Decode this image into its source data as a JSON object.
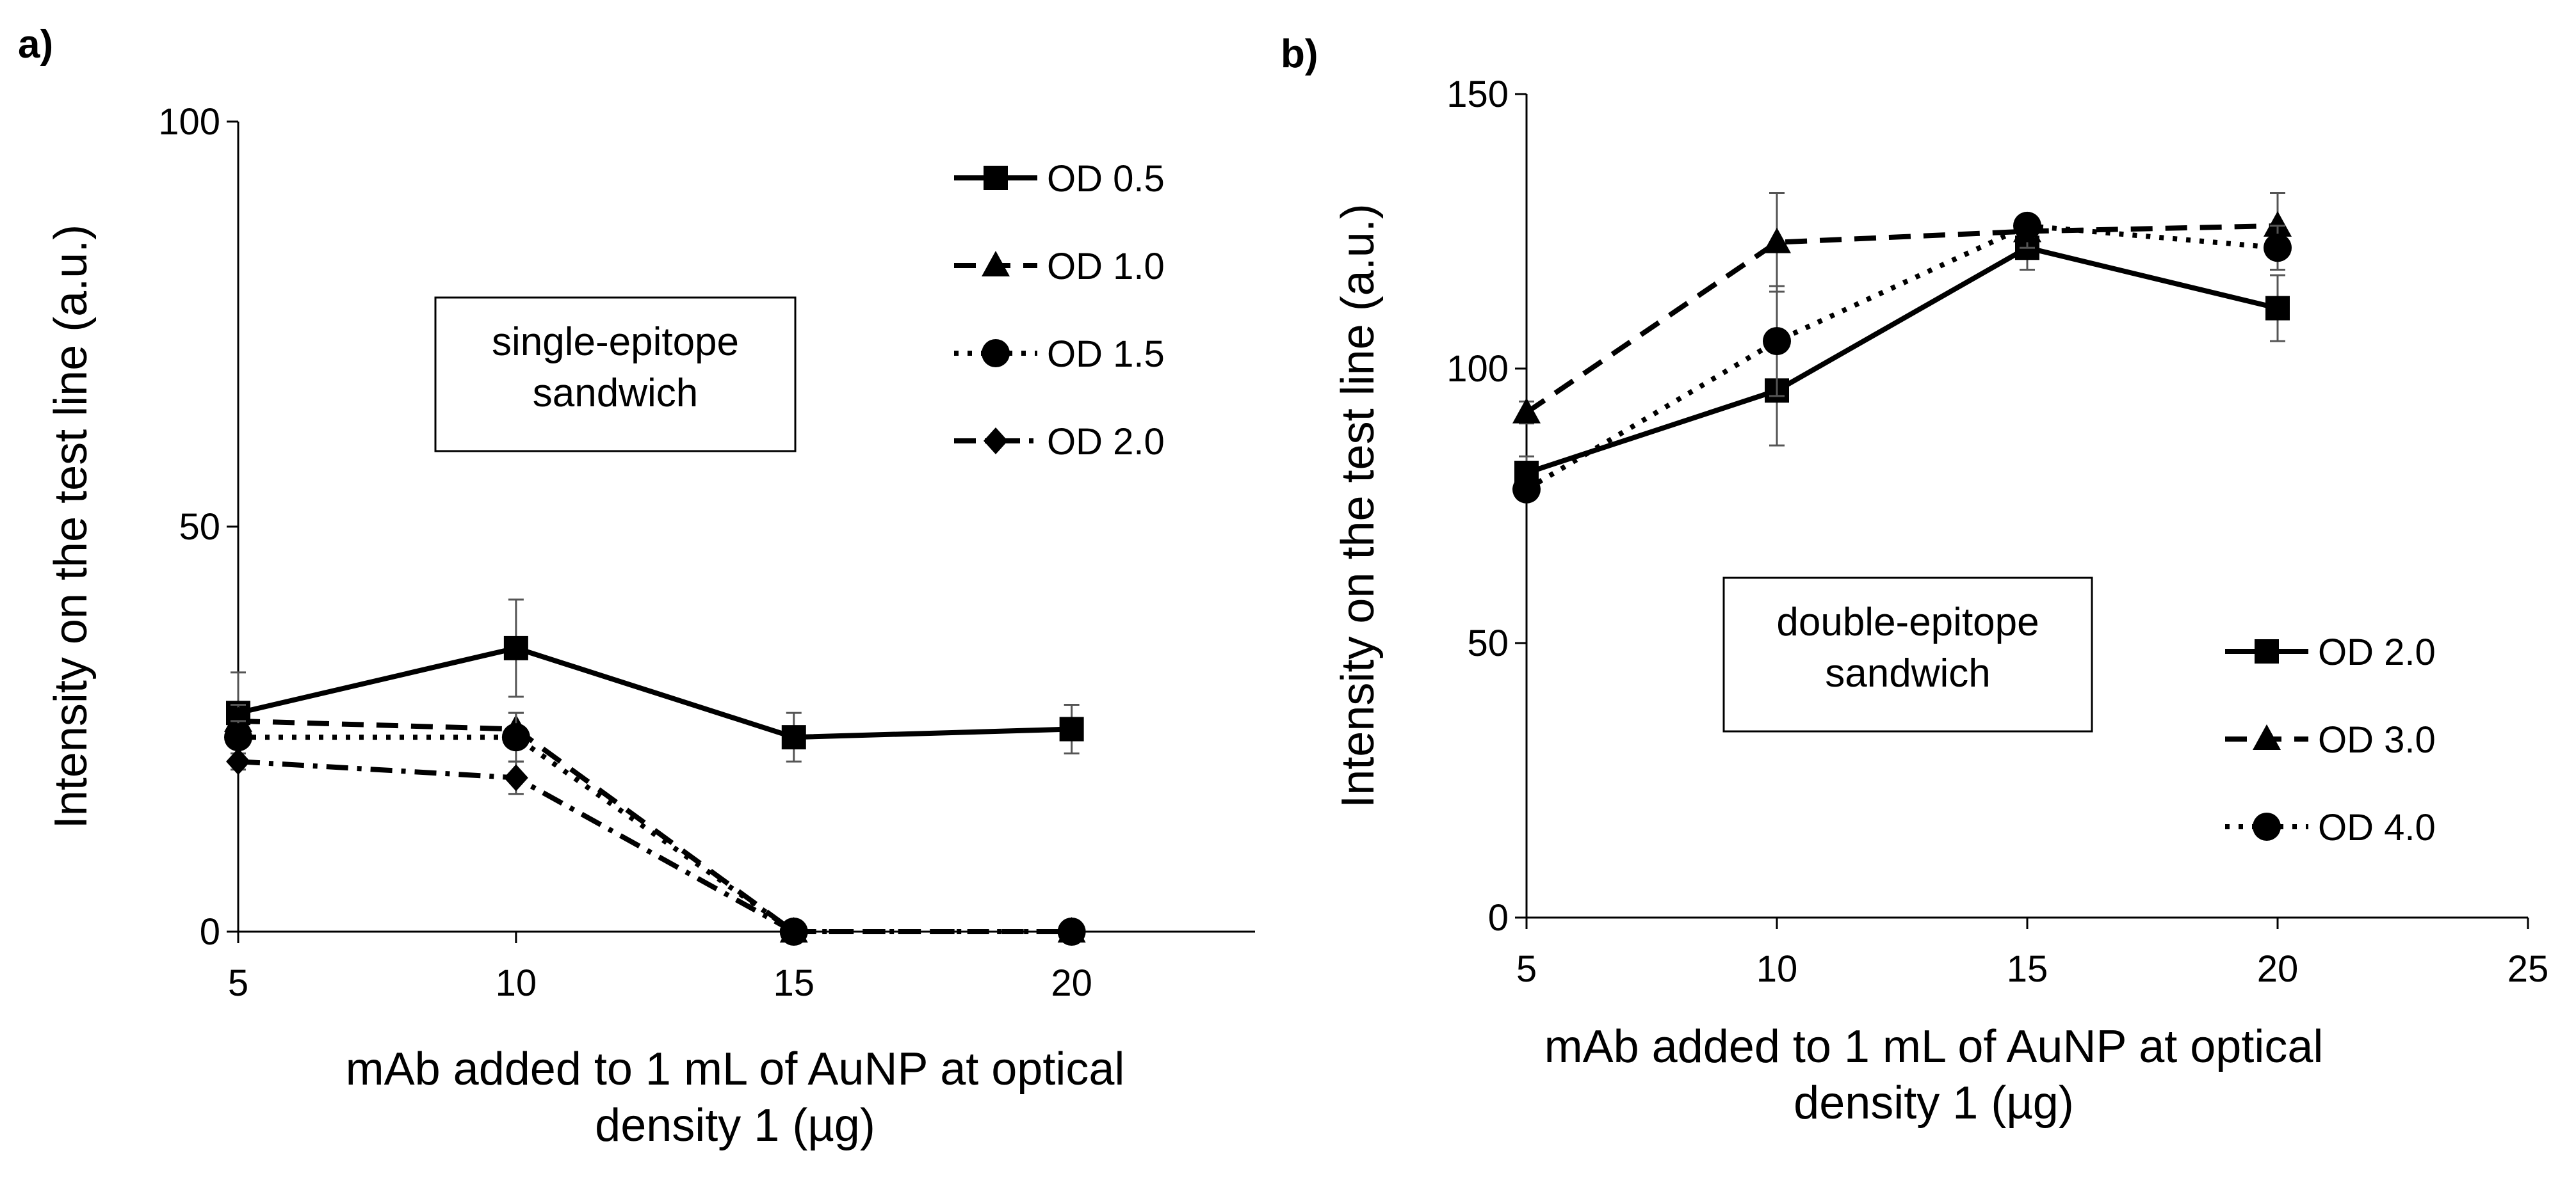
{
  "chart_data": [
    {
      "panel_label": "a)",
      "type": "line",
      "xlabel": [
        "mAb added to 1 mL of AuNP at optical",
        "density 1 (µg)"
      ],
      "ylabel": "Intensity on the test line (a.u.)",
      "xlim": [
        5,
        23.3
      ],
      "ylim": [
        0,
        100
      ],
      "xticks": [
        5,
        10,
        15,
        20
      ],
      "yticks": [
        0,
        50,
        100
      ],
      "grid": false,
      "legend_position": "top-right",
      "annotation": [
        "single-epitope",
        "sandwich"
      ],
      "series": [
        {
          "name": "OD 0.5",
          "marker": "square",
          "dash": "solid",
          "x": [
            5,
            10,
            15,
            20
          ],
          "y": [
            27,
            35,
            24,
            25
          ],
          "err": [
            5,
            6,
            3,
            3
          ]
        },
        {
          "name": "OD 1.0",
          "marker": "triangle",
          "dash": "dashed",
          "x": [
            5,
            10,
            15,
            20
          ],
          "y": [
            26,
            25,
            0,
            0
          ],
          "err": [
            2,
            2,
            0,
            0
          ]
        },
        {
          "name": "OD 1.5",
          "marker": "circle",
          "dash": "dotted",
          "x": [
            5,
            10,
            15,
            20
          ],
          "y": [
            24,
            24,
            0,
            0
          ],
          "err": [
            2,
            3,
            0,
            0
          ]
        },
        {
          "name": "OD 2.0",
          "marker": "diamond",
          "dash": "dashdot",
          "x": [
            5,
            10,
            15
          ],
          "y": [
            21,
            19,
            0
          ],
          "err": [
            1,
            2,
            0
          ]
        }
      ]
    },
    {
      "panel_label": "b)",
      "type": "line",
      "xlabel": [
        "mAb added to 1 mL of AuNP at optical",
        "density 1 (µg)"
      ],
      "ylabel": "Intensity on the test line (a.u.)",
      "xlim": [
        5,
        25
      ],
      "ylim": [
        0,
        150
      ],
      "xticks": [
        5,
        10,
        15,
        20,
        25
      ],
      "yticks": [
        0,
        50,
        100,
        150
      ],
      "grid": false,
      "legend_position": "bottom-right",
      "annotation": [
        "double-epitope",
        "sandwich"
      ],
      "series": [
        {
          "name": "OD 2.0",
          "marker": "square",
          "dash": "solid",
          "x": [
            5,
            10,
            15,
            20
          ],
          "y": [
            81,
            96,
            122,
            111
          ],
          "err": [
            3,
            10,
            4,
            6
          ]
        },
        {
          "name": "OD 3.0",
          "marker": "triangle",
          "dash": "dashed",
          "x": [
            5,
            10,
            15,
            20
          ],
          "y": [
            92,
            123,
            125,
            126
          ],
          "err": [
            2,
            9,
            3,
            6
          ]
        },
        {
          "name": "OD 4.0",
          "marker": "circle",
          "dash": "dotted",
          "x": [
            5,
            10,
            15,
            20
          ],
          "y": [
            78,
            105,
            126,
            122
          ],
          "err": [
            2,
            10,
            2,
            4
          ]
        }
      ]
    }
  ]
}
